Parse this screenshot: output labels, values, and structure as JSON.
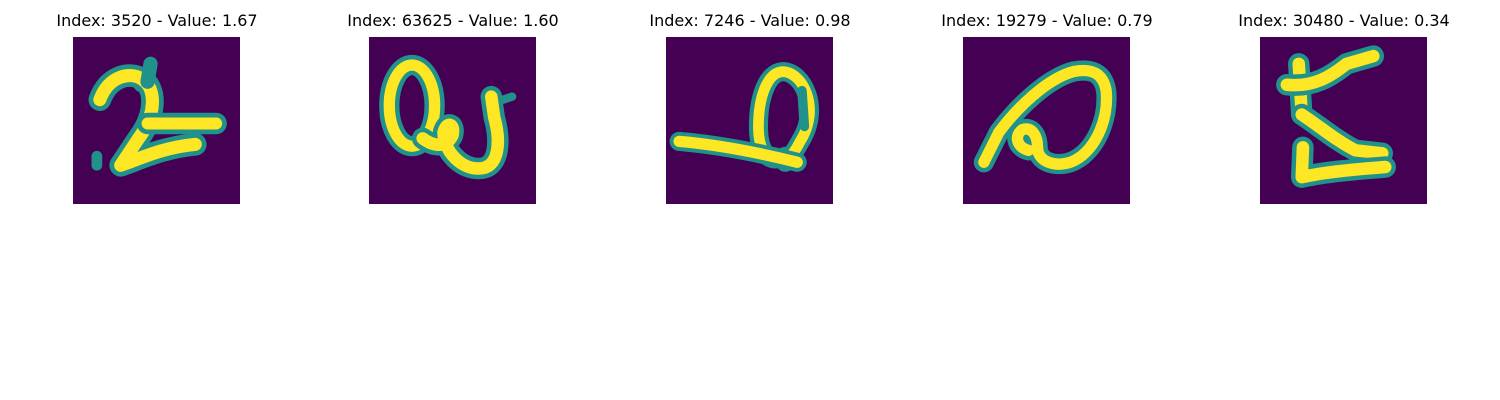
{
  "figure": {
    "background": "#ffffff",
    "colormap": {
      "background": "#440154",
      "mid": "#21918c",
      "high": "#fde725"
    },
    "panels": [
      {
        "title": "Index: 3520 - Value: 1.67",
        "digit": "2"
      },
      {
        "title": "Index: 63625 - Value: 1.60",
        "digit": "0"
      },
      {
        "title": "Index: 7246 - Value: 0.98",
        "digit": "0"
      },
      {
        "title": "Index: 19279 - Value: 0.79",
        "digit": "0"
      },
      {
        "title": "Index: 30480 - Value: 0.34",
        "digit": "5"
      }
    ]
  }
}
